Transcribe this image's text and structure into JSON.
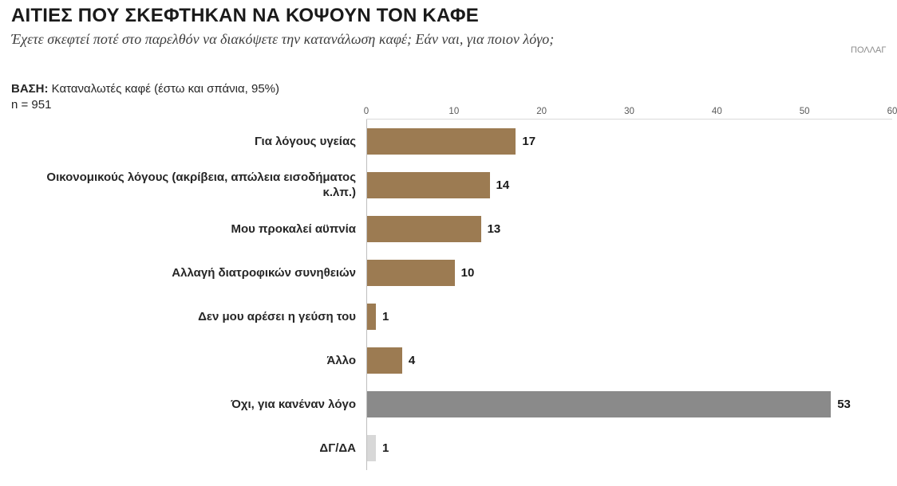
{
  "header": {
    "title": "ΑΙΤΙΕΣ ΠΟΥ ΣΚΕΦΤΗΚΑΝ ΝΑ ΚΟΨΟΥΝ ΤΟΝ ΚΑΦΕ",
    "subtitle": "Έχετε σκεφτεί ποτέ στο παρελθόν να διακόψετε την κατανάλωση καφέ; Εάν ναι, για ποιον λόγο;",
    "note": "ΠΟΛΛΑΓ"
  },
  "base": {
    "label": "ΒΑΣΗ:",
    "text": "Καταναλωτές καφέ (έστω και σπάνια, 95%)",
    "sample": "n = 951"
  },
  "chart_data": {
    "type": "bar",
    "orientation": "horizontal",
    "title": "ΑΙΤΙΕΣ ΠΟΥ ΣΚΕΦΤΗΚΑΝ ΝΑ ΚΟΨΟΥΝ ΤΟΝ ΚΑΦΕ",
    "categories": [
      "Για λόγους υγείας",
      "Οικονομικούς λόγους (ακρίβεια, απώλεια εισοδήματος κ.λπ.)",
      "Μου προκαλεί αϋπνία",
      "Αλλαγή διατροφικών συνηθειών",
      "Δεν μου αρέσει η γεύση του",
      "Άλλο",
      "Όχι, για κανέναν λόγο",
      "ΔΓ/ΔΑ"
    ],
    "values": [
      17,
      14,
      13,
      10,
      1,
      4,
      53,
      1
    ],
    "bar_colors": [
      "#9c7b52",
      "#9c7b52",
      "#9c7b52",
      "#9c7b52",
      "#9c7b52",
      "#9c7b52",
      "#8a8a8a",
      "#d8d8d8"
    ],
    "xlim": [
      0,
      60
    ],
    "ticks": [
      0,
      10,
      20,
      30,
      40,
      50,
      60
    ],
    "xlabel": "",
    "ylabel": "",
    "grid": false,
    "legend": false,
    "accent_color": "#9c7b52",
    "secondary_color": "#8a8a8a",
    "muted_color": "#d8d8d8"
  }
}
